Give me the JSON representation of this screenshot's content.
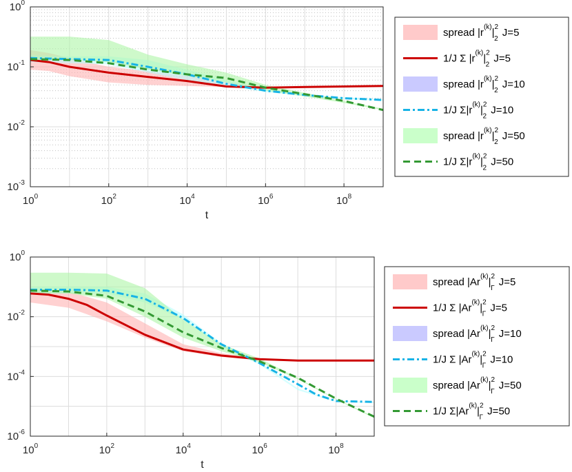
{
  "chart_data": [
    {
      "type": "line",
      "xlabel": "t",
      "ylabel": "",
      "xscale": "log",
      "yscale": "log",
      "xlim": [
        1,
        1000000000
      ],
      "ylim": [
        0.001,
        1
      ],
      "grid": "major+minor",
      "legend_position": "outside-right",
      "x_tick_labels": [
        {
          "base": "10",
          "exp": "0"
        },
        {
          "base": "10",
          "exp": "2"
        },
        {
          "base": "10",
          "exp": "4"
        },
        {
          "base": "10",
          "exp": "6"
        },
        {
          "base": "10",
          "exp": "8"
        }
      ],
      "y_tick_labels": [
        {
          "base": "10",
          "exp": "-3"
        },
        {
          "base": "10",
          "exp": "-2"
        },
        {
          "base": "10",
          "exp": "-1"
        },
        {
          "base": "10",
          "exp": "0"
        }
      ],
      "series": [
        {
          "name": "spread J=5",
          "kind": "band",
          "color": "#ffb3b3",
          "opacity": 0.6,
          "x": [
            1,
            3,
            10,
            100,
            1000,
            10000,
            100000,
            1000000,
            10000000,
            100000000,
            1000000000
          ],
          "lower": [
            0.09,
            0.085,
            0.07,
            0.055,
            0.05,
            0.048,
            0.046,
            0.045,
            0.046,
            0.047,
            0.047
          ],
          "upper": [
            0.19,
            0.17,
            0.14,
            0.1,
            0.085,
            0.07,
            0.055,
            0.046,
            0.047,
            0.048,
            0.048
          ]
        },
        {
          "name": "spread J=10",
          "kind": "band",
          "color": "#b3ffff",
          "opacity": 0.55,
          "x": [
            1,
            10,
            100,
            1000,
            10000,
            100000,
            1000000,
            10000000,
            100000000,
            1000000000
          ],
          "lower": [
            0.12,
            0.115,
            0.11,
            0.08,
            0.06,
            0.048,
            0.038,
            0.033,
            0.029,
            0.027
          ],
          "upper": [
            0.155,
            0.15,
            0.15,
            0.13,
            0.09,
            0.06,
            0.042,
            0.035,
            0.031,
            0.029
          ]
        },
        {
          "name": "spread J=50",
          "kind": "band",
          "color": "#aef5a6",
          "opacity": 0.6,
          "x": [
            1,
            10,
            100,
            1000,
            10000,
            100000,
            1000000,
            10000000,
            100000000,
            1000000000
          ],
          "lower": [
            0.13,
            0.13,
            0.12,
            0.09,
            0.07,
            0.055,
            0.04,
            0.032,
            0.025,
            0.019
          ],
          "upper": [
            0.32,
            0.32,
            0.28,
            0.16,
            0.11,
            0.08,
            0.05,
            0.037,
            0.027,
            0.02
          ]
        },
        {
          "name": "mean J=5",
          "kind": "line",
          "color": "#cc0000",
          "dash": "",
          "width": 3,
          "x": [
            1,
            3,
            10,
            100,
            1000,
            10000,
            100000,
            1000000,
            10000000,
            100000000,
            1000000000
          ],
          "y": [
            0.13,
            0.12,
            0.1,
            0.08,
            0.068,
            0.058,
            0.047,
            0.045,
            0.046,
            0.047,
            0.048
          ]
        },
        {
          "name": "mean J=10",
          "kind": "line",
          "color": "#17b3e6",
          "dash": "10 4 3 4",
          "width": 3,
          "x": [
            1,
            10,
            100,
            1000,
            10000,
            100000,
            1000000,
            10000000,
            100000000,
            1000000000
          ],
          "y": [
            0.14,
            0.135,
            0.13,
            0.1,
            0.075,
            0.052,
            0.04,
            0.034,
            0.03,
            0.028
          ]
        },
        {
          "name": "mean J=50",
          "kind": "line",
          "color": "#339933",
          "dash": "10 6",
          "width": 3,
          "x": [
            1,
            10,
            100,
            1000,
            10000,
            100000,
            1000000,
            10000000,
            100000000,
            1000000000
          ],
          "y": [
            0.135,
            0.13,
            0.115,
            0.09,
            0.075,
            0.065,
            0.045,
            0.035,
            0.027,
            0.019
          ]
        }
      ],
      "legend": [
        {
          "kind": "band",
          "color": "#ffb3b3",
          "prefix": "spread |r",
          "sup": "(k)",
          "mid": "|",
          "sup2": "2",
          "sub": "2",
          "suffix": " J=5"
        },
        {
          "kind": "line",
          "color": "#cc0000",
          "dash": "",
          "prefix": "1/J Σ |r",
          "sup": "(k)",
          "mid": "|",
          "sup2": "2",
          "sub": "2",
          "suffix": " J=5"
        },
        {
          "kind": "band",
          "color": "#b3b3ff",
          "prefix": "spread |r",
          "sup": "(k)",
          "mid": "|",
          "sup2": "2",
          "sub": "2",
          "suffix": " J=10"
        },
        {
          "kind": "line",
          "color": "#17b3e6",
          "dash": "10 4 3 4",
          "prefix": "1/J Σ|r",
          "sup": "(k)",
          "mid": "|",
          "sup2": "2",
          "sub": "2",
          "suffix": " J=10"
        },
        {
          "kind": "band",
          "color": "#b3ffb3",
          "prefix": "spread |r",
          "sup": "(k)",
          "mid": "|",
          "sup2": "2",
          "sub": "2",
          "suffix": " J=50"
        },
        {
          "kind": "line",
          "color": "#339933",
          "dash": "10 6",
          "prefix": "1/J Σ|r",
          "sup": "(k)",
          "mid": "|",
          "sup2": "2",
          "sub": "2",
          "suffix": " J=50"
        }
      ]
    },
    {
      "type": "line",
      "xlabel": "t",
      "ylabel": "",
      "xscale": "log",
      "yscale": "log",
      "xlim": [
        1,
        1000000000
      ],
      "ylim": [
        1e-06,
        1
      ],
      "grid": "major",
      "legend_position": "outside-right",
      "x_tick_labels": [
        {
          "base": "10",
          "exp": "0"
        },
        {
          "base": "10",
          "exp": "2"
        },
        {
          "base": "10",
          "exp": "4"
        },
        {
          "base": "10",
          "exp": "6"
        },
        {
          "base": "10",
          "exp": "8"
        }
      ],
      "y_tick_labels": [
        {
          "base": "10",
          "exp": "-6"
        },
        {
          "base": "10",
          "exp": "-4"
        },
        {
          "base": "10",
          "exp": "-2"
        },
        {
          "base": "10",
          "exp": "0"
        }
      ],
      "series": [
        {
          "name": "spread J=5",
          "kind": "band",
          "color": "#ffb3b3",
          "opacity": 0.6,
          "x": [
            1,
            10,
            100,
            1000,
            10000,
            100000,
            1000000,
            10000000,
            100000000,
            1000000000
          ],
          "lower": [
            0.03,
            0.02,
            0.007,
            0.002,
            0.0007,
            0.00045,
            0.00035,
            0.00032,
            0.00032,
            0.00032
          ],
          "upper": [
            0.08,
            0.07,
            0.03,
            0.006,
            0.0012,
            0.0006,
            0.0004,
            0.00034,
            0.00034,
            0.00034
          ]
        },
        {
          "name": "spread J=10",
          "kind": "band",
          "color": "#b3ffff",
          "opacity": 0.55,
          "x": [
            1,
            10,
            100,
            1000,
            10000,
            100000,
            1000000,
            10000000,
            100000000,
            1000000000
          ],
          "lower": [
            0.06,
            0.06,
            0.06,
            0.03,
            0.008,
            0.001,
            0.00025,
            3.5e-05,
            1.4e-05,
            1.3e-05
          ],
          "upper": [
            0.1,
            0.1,
            0.1,
            0.06,
            0.012,
            0.0013,
            0.0003,
            4e-05,
            1.5e-05,
            1.4e-05
          ]
        },
        {
          "name": "spread J=50",
          "kind": "band",
          "color": "#aef5a6",
          "opacity": 0.6,
          "x": [
            1,
            10,
            100,
            1000,
            10000,
            100000,
            1000000,
            10000000,
            100000000,
            1000000000
          ],
          "lower": [
            0.06,
            0.06,
            0.04,
            0.01,
            0.002,
            0.0007,
            0.0003,
            8e-05,
            1.7e-05,
            4e-06
          ],
          "upper": [
            0.3,
            0.3,
            0.28,
            0.09,
            0.008,
            0.0012,
            0.0004,
            9e-05,
            1.8e-05,
            4.5e-06
          ]
        },
        {
          "name": "mean J=5",
          "kind": "line",
          "color": "#cc0000",
          "dash": "",
          "width": 3,
          "x": [
            1,
            3,
            10,
            30,
            100,
            1000,
            10000,
            100000,
            1000000,
            10000000,
            100000000,
            1000000000
          ],
          "y": [
            0.06,
            0.055,
            0.04,
            0.025,
            0.011,
            0.0025,
            0.0008,
            0.0005,
            0.00038,
            0.00034,
            0.00034,
            0.00034
          ]
        },
        {
          "name": "mean J=10",
          "kind": "line",
          "color": "#17b3e6",
          "dash": "10 4 3 4",
          "width": 3,
          "x": [
            1,
            10,
            100,
            1000,
            10000,
            100000,
            1000000,
            10000000,
            30000000,
            100000000,
            1000000000
          ],
          "y": [
            0.08,
            0.08,
            0.075,
            0.04,
            0.009,
            0.0012,
            0.00028,
            5.5e-05,
            2.5e-05,
            1.5e-05,
            1.4e-05
          ]
        },
        {
          "name": "mean J=50",
          "kind": "line",
          "color": "#339933",
          "dash": "10 6",
          "width": 3,
          "x": [
            1,
            10,
            100,
            1000,
            10000,
            100000,
            1000000,
            10000000,
            100000000,
            1000000000
          ],
          "y": [
            0.075,
            0.07,
            0.05,
            0.015,
            0.003,
            0.0009,
            0.00032,
            9e-05,
            1.8e-05,
            4.5e-06
          ]
        }
      ],
      "legend": [
        {
          "kind": "band",
          "color": "#ffb3b3",
          "prefix": "spread |Ar",
          "sup": "(k)",
          "mid": "|",
          "sup2": "2",
          "sub": "Γ",
          "suffix": " J=5"
        },
        {
          "kind": "line",
          "color": "#cc0000",
          "dash": "",
          "prefix": "1/J Σ |Ar",
          "sup": "(k)",
          "mid": "|",
          "sup2": "2",
          "sub": "Γ",
          "suffix": " J=5"
        },
        {
          "kind": "band",
          "color": "#b3b3ff",
          "prefix": "spread |Ar",
          "sup": "(k)",
          "mid": "|",
          "sup2": "2",
          "sub": "Γ",
          "suffix": " J=10"
        },
        {
          "kind": "line",
          "color": "#17b3e6",
          "dash": "10 4 3 4",
          "prefix": "1/J Σ |Ar",
          "sup": "(k)",
          "mid": "|",
          "sup2": "2",
          "sub": "Γ",
          "suffix": " J=10"
        },
        {
          "kind": "band",
          "color": "#b3ffb3",
          "prefix": "spread |Ar",
          "sup": "(k)",
          "mid": "|",
          "sup2": "2",
          "sub": "Γ",
          "suffix": " J=50"
        },
        {
          "kind": "line",
          "color": "#339933",
          "dash": "10 6",
          "prefix": "1/J Σ|Ar",
          "sup": "(k)",
          "mid": "|",
          "sup2": "2",
          "sub": "Γ",
          "suffix": " J=50"
        }
      ]
    }
  ]
}
